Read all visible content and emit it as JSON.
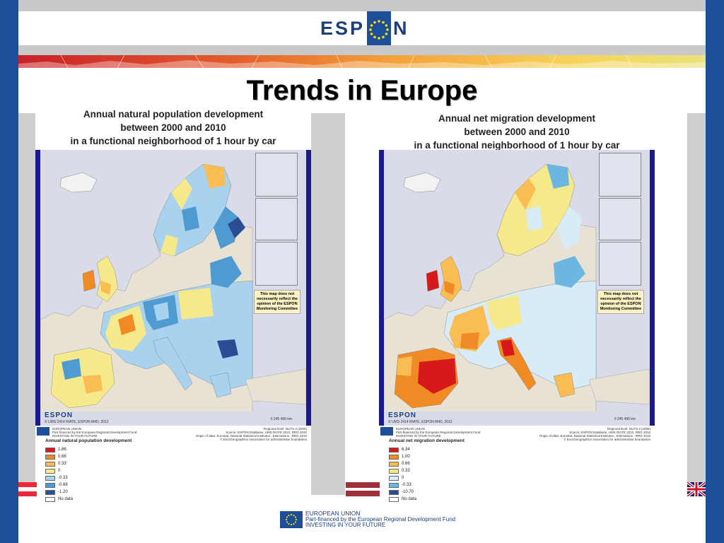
{
  "header": {
    "logo_left": "ESP",
    "logo_right": "N"
  },
  "title": "Trends in Europe",
  "panels": [
    {
      "title_lines": [
        "Annual natural population development",
        "between 2000 and 2010",
        "in a functional neighborhood of 1 hour by car"
      ],
      "notice": "This map does not necessarily reflect the opinion of the ESPON Monitoring Committee",
      "map_credit": "© UMS 2414 RIATE, ESPON M4D, 2012",
      "map_logo": "ESPON",
      "scale": "0  245  490 km",
      "meta_left": [
        "EUROPEAN UNION",
        "Part-financed by the European Regional Development Fund",
        "INVESTING IN YOUR FUTURE"
      ],
      "meta_right": [
        "Regional level: NUTS 3 (2006)",
        "Source: ESPON Database, UMS RIATE 2012, RRG 2010",
        "Origin of data: Eurostat, National Statistical Institutes , Estimations , RRG 2010",
        "© EuroGeographics Association for administrative boundaries"
      ],
      "legend_title": "Annual natural population development",
      "legend": [
        {
          "label": "1.86",
          "color": "#d7191c"
        },
        {
          "label": "0.66",
          "color": "#f08a24"
        },
        {
          "label": "0.33",
          "color": "#f9bd53"
        },
        {
          "label": "0",
          "color": "#f5e98c"
        },
        {
          "label": "-0.33",
          "color": "#a8d2ee"
        },
        {
          "label": "-0.66",
          "color": "#4f9bd1"
        },
        {
          "label": "-1.20",
          "color": "#2a4c93"
        },
        {
          "label": "No data",
          "color": "#ffffff"
        }
      ]
    },
    {
      "title_lines": [
        "Annual net migration development",
        "between 2000 and 2010",
        "in a functional neighborhood of 1 hour by car"
      ],
      "notice": "This map does not necessarily reflect the opinion of the ESPON Monitoring Committee",
      "map_credit": "© UMS 2414 RIATE, ESPON M4D, 2012",
      "map_logo": "ESPON",
      "scale": "0  245  490 km",
      "meta_left": [
        "EUROPEAN UNION",
        "Part-financed by the European Regional Development Fund",
        "INVESTING IN YOUR FUTURE"
      ],
      "meta_right": [
        "Regional level: NUTS 3 (2006)",
        "Source: ESPON Database, UMS RIATE 2012, RRG 2010",
        "Origin of data: Eurostat, National Statistical Institutes , Estimations , RRG 2010",
        "© EuroGeographics Association for administrative boundaries"
      ],
      "legend_title": "Annual net migration development",
      "legend": [
        {
          "label": "6.34",
          "color": "#d7191c"
        },
        {
          "label": "1.00",
          "color": "#f08a24"
        },
        {
          "label": "0.66",
          "color": "#f9bd53"
        },
        {
          "label": "0.33",
          "color": "#f5e98c"
        },
        {
          "label": "0",
          "color": "#d8ecf7"
        },
        {
          "label": "-0.33",
          "color": "#6cb6e2"
        },
        {
          "label": "-10.70",
          "color": "#2a4c93"
        },
        {
          "label": "No data",
          "color": "#ffffff"
        }
      ]
    }
  ],
  "footer": {
    "line1": "EUROPEAN UNION",
    "line2": "Part-financed by the European Regional Development Fund",
    "line3": "INVESTING IN YOUR FUTURE"
  },
  "colors": {
    "brand_blue": "#1c4f97",
    "map_sea": "#d9dce8",
    "map_frame": "#1a1a8c"
  }
}
